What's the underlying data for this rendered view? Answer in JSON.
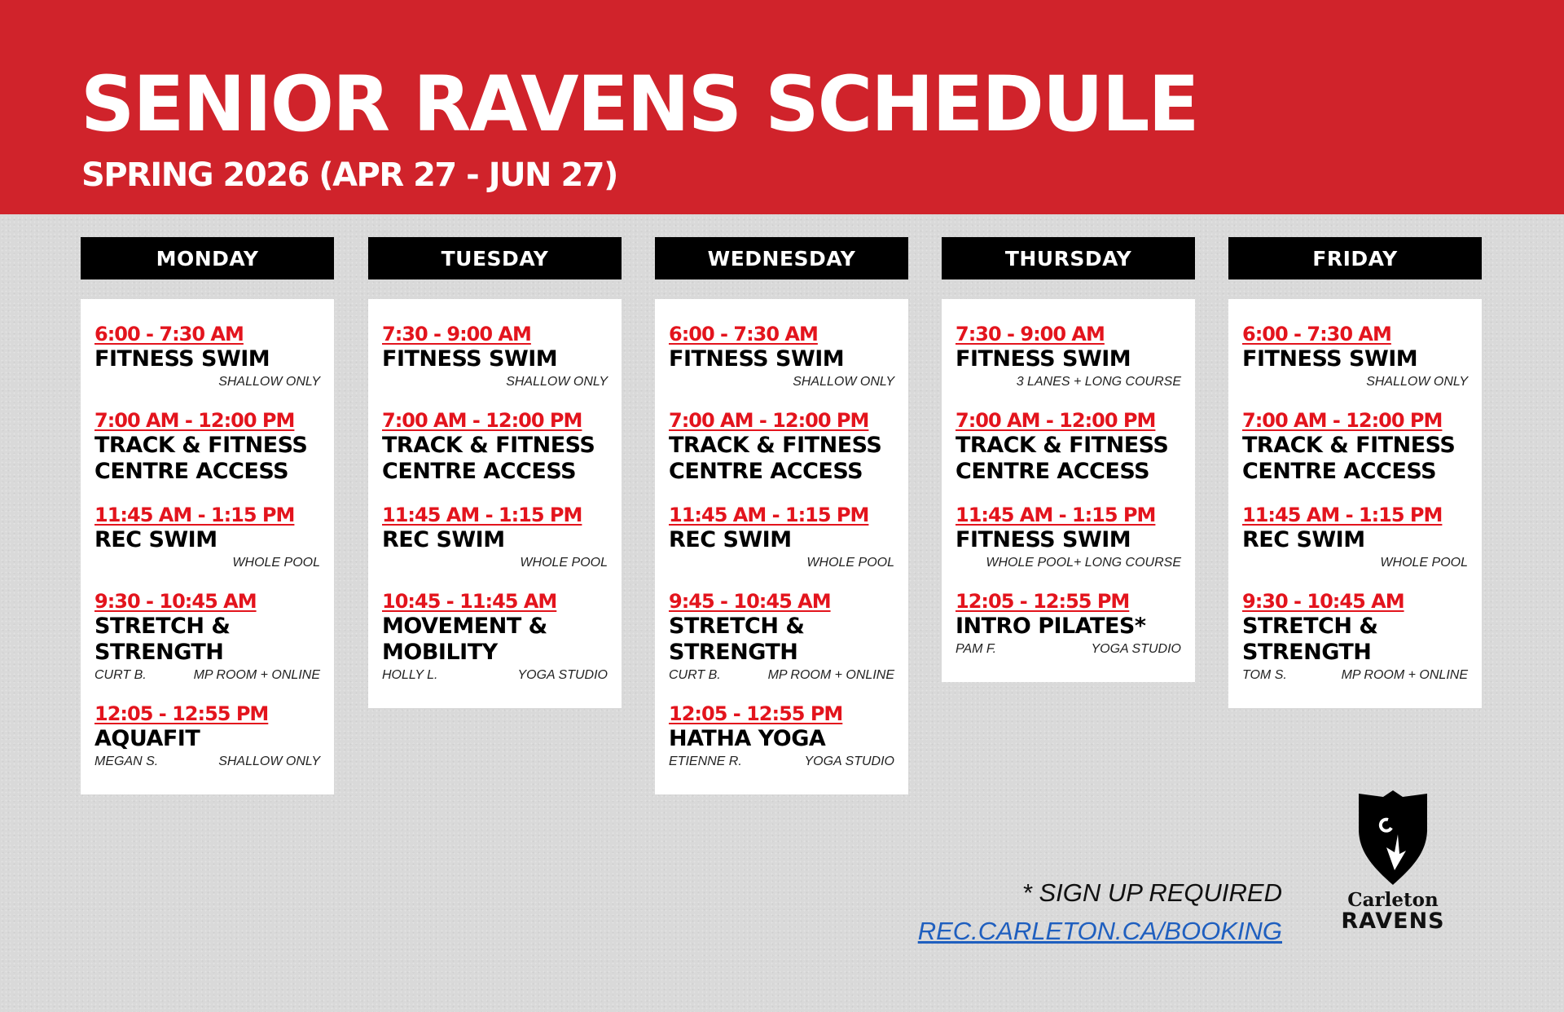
{
  "header": {
    "title": "SENIOR RAVENS SCHEDULE",
    "subtitle": "SPRING 2026 (APR 27 - JUN 27)"
  },
  "colors": {
    "banner": "#d0232b",
    "time": "#e3141d",
    "link": "#1f5fbf"
  },
  "days": [
    {
      "name": "MONDAY",
      "events": [
        {
          "time": "6:00 - 7:30 AM",
          "title": [
            "FITNESS SWIM"
          ],
          "note_left": "",
          "note_right": "SHALLOW ONLY"
        },
        {
          "time": "7:00 AM - 12:00 PM",
          "title": [
            "TRACK & FITNESS",
            "CENTRE ACCESS"
          ],
          "note_left": "",
          "note_right": ""
        },
        {
          "time": "11:45 AM - 1:15 PM",
          "title": [
            "REC SWIM"
          ],
          "note_left": "",
          "note_right": "WHOLE  POOL"
        },
        {
          "time": "9:30 - 10:45 AM",
          "title": [
            "STRETCH &",
            "STRENGTH"
          ],
          "note_left": "CURT B.",
          "note_right": "MP ROOM + ONLINE"
        },
        {
          "time": "12:05 - 12:55 PM",
          "title": [
            "AQUAFIT"
          ],
          "note_left": "MEGAN S.",
          "note_right": "SHALLOW ONLY"
        }
      ]
    },
    {
      "name": "TUESDAY",
      "events": [
        {
          "time": "7:30 - 9:00 AM",
          "title": [
            "FITNESS SWIM"
          ],
          "note_left": "",
          "note_right": "SHALLOW ONLY"
        },
        {
          "time": "7:00 AM - 12:00 PM",
          "title": [
            "TRACK & FITNESS",
            "CENTRE ACCESS"
          ],
          "note_left": "",
          "note_right": ""
        },
        {
          "time": "11:45 AM - 1:15 PM",
          "title": [
            "REC SWIM"
          ],
          "note_left": "",
          "note_right": "WHOLE  POOL"
        },
        {
          "time": "10:45 - 11:45 AM",
          "title": [
            "MOVEMENT &",
            "MOBILITY"
          ],
          "note_left": "HOLLY L.",
          "note_right": "YOGA STUDIO"
        }
      ]
    },
    {
      "name": "WEDNESDAY",
      "events": [
        {
          "time": "6:00 - 7:30 AM",
          "title": [
            "FITNESS SWIM"
          ],
          "note_left": "",
          "note_right": "SHALLOW ONLY"
        },
        {
          "time": "7:00 AM - 12:00 PM",
          "title": [
            "TRACK & FITNESS",
            "CENTRE ACCESS"
          ],
          "note_left": "",
          "note_right": ""
        },
        {
          "time": "11:45 AM - 1:15 PM",
          "title": [
            "REC SWIM"
          ],
          "note_left": "",
          "note_right": "WHOLE  POOL"
        },
        {
          "time": "9:45 - 10:45 AM",
          "title": [
            "STRETCH &",
            "STRENGTH"
          ],
          "note_left": "CURT B.",
          "note_right": "MP ROOM + ONLINE"
        },
        {
          "time": "12:05 - 12:55 PM",
          "title": [
            "HATHA YOGA"
          ],
          "note_left": "ETIENNE R.",
          "note_right": "YOGA STUDIO"
        }
      ]
    },
    {
      "name": "THURSDAY",
      "events": [
        {
          "time": "7:30 - 9:00 AM",
          "title": [
            "FITNESS SWIM"
          ],
          "note_left": "",
          "note_right": "3 LANES + LONG COURSE"
        },
        {
          "time": "7:00 AM - 12:00 PM",
          "title": [
            "TRACK & FITNESS",
            "CENTRE ACCESS"
          ],
          "note_left": "",
          "note_right": ""
        },
        {
          "time": "11:45 AM - 1:15 PM",
          "title": [
            "FITNESS SWIM"
          ],
          "note_left": "",
          "note_right": "WHOLE  POOL+ LONG COURSE"
        },
        {
          "time": "12:05 - 12:55 PM",
          "title": [
            "INTRO PILATES*"
          ],
          "note_left": "PAM F.",
          "note_right": "YOGA STUDIO"
        }
      ]
    },
    {
      "name": "FRIDAY",
      "events": [
        {
          "time": "6:00 - 7:30 AM",
          "title": [
            "FITNESS SWIM"
          ],
          "note_left": "",
          "note_right": "SHALLOW ONLY"
        },
        {
          "time": "7:00 AM - 12:00 PM",
          "title": [
            "TRACK & FITNESS",
            "CENTRE ACCESS"
          ],
          "note_left": "",
          "note_right": ""
        },
        {
          "time": "11:45 AM - 1:15 PM",
          "title": [
            "REC SWIM"
          ],
          "note_left": "",
          "note_right": "WHOLE  POOL"
        },
        {
          "time": "9:30 - 10:45 AM",
          "title": [
            "STRETCH &",
            "STRENGTH"
          ],
          "note_left": "TOM S.",
          "note_right": "MP ROOM + ONLINE"
        }
      ]
    }
  ],
  "footer": {
    "signup_note": "* SIGN UP REQUIRED",
    "booking_link": "REC.CARLETON.CA/BOOKING"
  },
  "logo": {
    "line1": "Carleton",
    "line2": "RAVENS",
    "icon": "raven-shield-icon"
  }
}
